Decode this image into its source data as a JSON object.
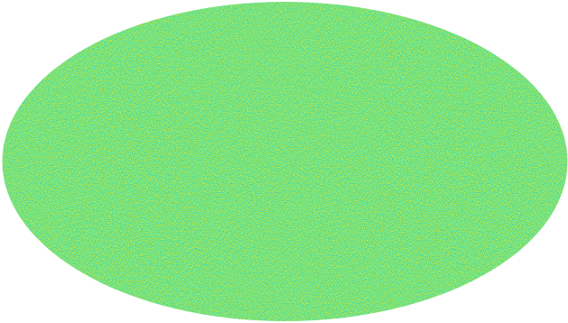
{
  "chart_data": {
    "type": "mollweide",
    "colormap": [
      "#2bbfc0",
      "#3fd6b0",
      "#5fe28e",
      "#8fe668",
      "#c8e64a",
      "#ecea2e"
    ]
  }
}
